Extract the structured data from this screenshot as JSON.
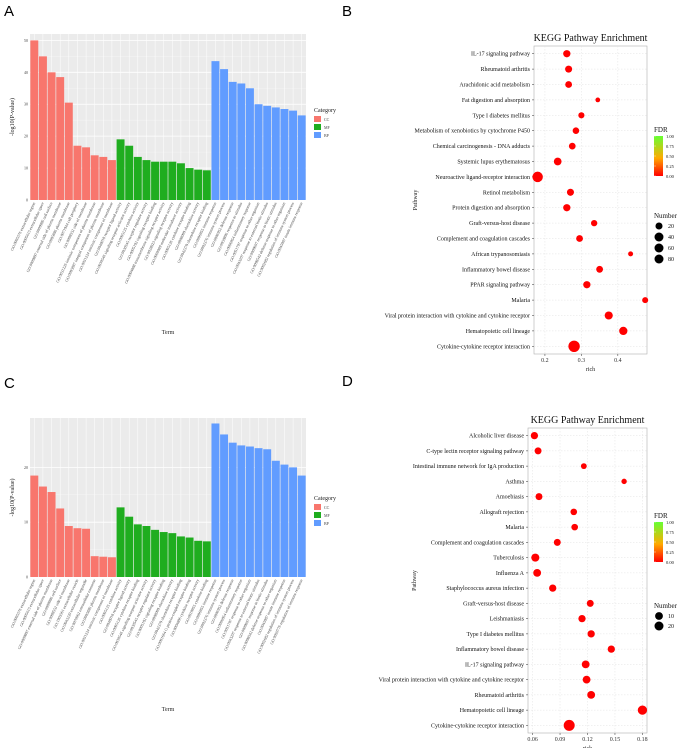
{
  "panels": [
    "A",
    "B",
    "C",
    "D"
  ],
  "colors": {
    "CC": "#f8766d",
    "MF": "#1fad1f",
    "BP": "#619cff",
    "panel_bg": "#ebebeb",
    "fdr_low": "#ff0000",
    "fdr_high": "#66ff33"
  },
  "chart_data": [
    {
      "panel": "A",
      "type": "bar",
      "xlabel": "Term",
      "ylabel": "-log10(P-value)",
      "ylim": [
        0,
        52
      ],
      "yticks": [
        0,
        10,
        20,
        30,
        40,
        50
      ],
      "grid": true,
      "legend_title": "Category",
      "legend_position": "right",
      "groups": [
        {
          "name": "CC",
          "terms": [
            "GO:0005576 extracellular region",
            "GO:0005615 extracellular space",
            "GO:0009986 cell surface",
            "GO:0009897 external side of plasma membrane",
            "GO:0005886 plasma membrane",
            "GO:0071944 cell periphery",
            "GO:0098552 side of membrane",
            "GO:0031226 intrinsic component of plasma membrane",
            "GO:0005887 integral component of plasma membrane",
            "GO:0031224 intrinsic component of membrane"
          ],
          "values": [
            50,
            45,
            40,
            38.5,
            30.5,
            17,
            16.5,
            14,
            13.5,
            12.5
          ]
        },
        {
          "name": "MF",
          "terms": [
            "GO:0048018 receptor ligand activity",
            "GO:0030546 signaling receptor activator activity",
            "GO:0005125 cytokine activity",
            "GO:0030545 receptor regulator activity",
            "GO:0005102 signaling receptor binding",
            "GO:0004888 transmembrane signaling receptor activity",
            "GO:0038023 signaling receptor activity",
            "GO:0060089 molecular transducer activity",
            "GO:0005126 cytokine receptor binding",
            "GO:0008009 chemokine activity",
            "GO:0042379 chemokine receptor binding"
          ],
          "values": [
            19,
            17,
            13.5,
            12.5,
            12,
            12,
            12,
            11.5,
            10,
            9.5,
            9.3
          ]
        },
        {
          "name": "BP",
          "terms": [
            "GO:0006955 immune response",
            "GO:0002376 immune system process",
            "GO:0006952 defense response",
            "GO:0050896 response to stimulus",
            "GO:0006954 inflammatory response",
            "GO:0051707 response to other organism",
            "GO:0043207 response to external biotic stimulus",
            "GO:0009607 response to biotic stimulus",
            "GO:0098542 defense response to other organism",
            "GO:0002682 regulation of immune system process",
            "GO:0045087 innate immune response"
          ],
          "values": [
            43.5,
            41,
            37,
            36.5,
            35,
            30,
            29.5,
            29,
            28.5,
            28,
            26.5
          ]
        }
      ]
    },
    {
      "panel": "B",
      "type": "scatter",
      "title": "KEGG Pathway Enrichment",
      "xlabel": "rich",
      "ylabel": "Pathway",
      "xlim": [
        0.17,
        0.48
      ],
      "xticks": [
        0.2,
        0.3,
        0.4
      ],
      "legend_fdr_title": "FDR",
      "legend_fdr_ticks": [
        "1.00",
        "0.75",
        "0.50",
        "0.25",
        "0.00"
      ],
      "legend_size_title": "Number",
      "legend_size_ticks": [
        20,
        40,
        60,
        80
      ],
      "pathways": [
        "IL-17 signaling pathway",
        "Rheumatoid arthritis",
        "Arachidonic acid metabolism",
        "Fat digestion and absorption",
        "Type I diabetes mellitus",
        "Metabolism of xenobiotics by cytochrome P450",
        "Chemical carcinogenesis - DNA adducts",
        "Systemic lupus erythematosus",
        "Neuroactive ligand-receptor interaction",
        "Retinol metabolism",
        "Protein digestion and absorption",
        "Graft-versus-host disease",
        "Complement and coagulation cascades",
        "African trypanosomiasis",
        "Inflammatory bowel disease",
        "PPAR signaling pathway",
        "Malaria",
        "Viral protein interaction with cytokine and cytokine receptor",
        "Hematopoietic cell lineage",
        "Cytokine-cytokine receptor interaction"
      ],
      "rich": [
        0.26,
        0.265,
        0.265,
        0.345,
        0.3,
        0.285,
        0.275,
        0.235,
        0.18,
        0.27,
        0.26,
        0.335,
        0.295,
        0.435,
        0.35,
        0.315,
        0.475,
        0.375,
        0.415,
        0.28
      ],
      "number": [
        22,
        20,
        18,
        5,
        13,
        16,
        17,
        26,
        60,
        20,
        22,
        14,
        18,
        6,
        18,
        22,
        12,
        30,
        32,
        75
      ]
    },
    {
      "panel": "C",
      "type": "bar",
      "xlabel": "Term",
      "ylabel": "-log10(P-value)",
      "ylim": [
        0,
        29
      ],
      "yticks": [
        0,
        10,
        20
      ],
      "grid": true,
      "legend_title": "Category",
      "legend_position": "right",
      "groups": [
        {
          "name": "CC",
          "terms": [
            "GO:0005576 extracellular region",
            "GO:0005615 extracellular space",
            "GO:0009897 external side of plasma membrane",
            "GO:0009986 cell surface",
            "GO:0098552 side of membrane",
            "GO:1903561 extracellular vesicle",
            "GO:0043230 extracellular organelle",
            "GO:0070062 extracellular exosome",
            "GO:0005886 plasma membrane",
            "GO:0031224 intrinsic component of membrane"
          ],
          "values": [
            18.5,
            16.5,
            15.5,
            12.5,
            9.3,
            8.9,
            8.8,
            3.8,
            3.7,
            3.6
          ]
        },
        {
          "name": "MF",
          "terms": [
            "GO:0005125 cytokine activity",
            "GO:0048018 receptor ligand activity",
            "GO:0005126 cytokine receptor binding",
            "GO:0030546 signaling receptor activator activity",
            "GO:0030545 receptor regulator activity",
            "GO:0005102 signaling receptor binding",
            "GO:0008009 chemokine activity",
            "GO:0042379 chemokine receptor binding",
            "GO:0001664 G protein-coupled receptor binding",
            "GO:0004896 cytokine receptor activity",
            "GO:0019955 cytokine binding"
          ],
          "values": [
            12.7,
            11,
            9.6,
            9.3,
            8.6,
            8.2,
            8,
            7.4,
            7.2,
            6.6,
            6.5
          ]
        },
        {
          "name": "BP",
          "terms": [
            "GO:0006955 immune response",
            "GO:0002376 immune system process",
            "GO:0006952 defense response",
            "GO:0006954 inflammatory response",
            "GO:0051707 response to other organism",
            "GO:0043207 response to external biotic stimulus",
            "GO:0009607 response to biotic stimulus",
            "GO:0098542 defense response to other organism",
            "GO:0045087 innate immune response",
            "GO:0002682 regulation of immune system process",
            "GO:0050776 regulation of immune response"
          ],
          "values": [
            28,
            26,
            24.5,
            24,
            23.8,
            23.5,
            23.3,
            21.2,
            20.5,
            20,
            18.5
          ]
        }
      ]
    },
    {
      "panel": "D",
      "type": "scatter",
      "title": "KEGG Pathway Enrichment",
      "xlabel": "rich",
      "ylabel": "Pathway",
      "xlim": [
        0.055,
        0.185
      ],
      "xticks": [
        "0.06",
        "0.09",
        "0.12",
        "0.15",
        "0.18"
      ],
      "legend_fdr_title": "FDR",
      "legend_fdr_ticks": [
        "1.00",
        "0.75",
        "0.50",
        "0.25",
        "0.00"
      ],
      "legend_size_title": "Number",
      "legend_size_ticks": [
        10,
        20
      ],
      "pathways": [
        "Alcoholic liver disease",
        "C-type lectin receptor signaling pathway",
        "Intestinal immune network for IgA production",
        "Asthma",
        "Amoebiasis",
        "Allograft rejection",
        "Malaria",
        "Complement and coagulation cascades",
        "Tuberculosis",
        "Influenza A",
        "Staphylococcus aureus infection",
        "Graft-versus-host disease",
        "Leishmaniasis",
        "Type I diabetes mellitus",
        "Inflammatory bowel disease",
        "IL-17 signaling pathway",
        "Viral protein interaction with cytokine and cytokine receptor",
        "Rheumatoid arthritis",
        "Hematopoietic cell lineage",
        "Cytokine-cytokine receptor interaction"
      ],
      "rich": [
        0.062,
        0.066,
        0.116,
        0.16,
        0.067,
        0.105,
        0.106,
        0.087,
        0.063,
        0.065,
        0.082,
        0.123,
        0.114,
        0.124,
        0.146,
        0.118,
        0.119,
        0.124,
        0.18,
        0.1
      ],
      "number": [
        8,
        7,
        4,
        3,
        7,
        6,
        6,
        7,
        11,
        10,
        8,
        7,
        8,
        8,
        8,
        10,
        10,
        10,
        16,
        25
      ]
    }
  ]
}
